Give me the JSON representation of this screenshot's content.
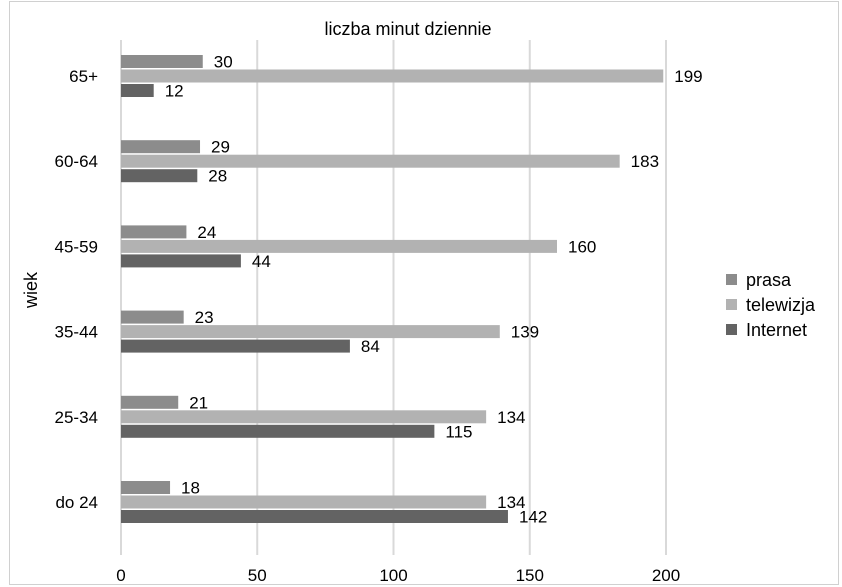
{
  "chart_data": {
    "type": "bar",
    "orientation": "horizontal",
    "title": "liczba minut dziennie",
    "xlabel": "",
    "ylabel": "wiek",
    "categories": [
      "do 24",
      "25-34",
      "35-44",
      "45-59",
      "60-64",
      "65+"
    ],
    "xlim": [
      0,
      200
    ],
    "xticks": [
      "0",
      "50",
      "100",
      "150",
      "200"
    ],
    "grid": "vertical",
    "legend_position": "right",
    "series": [
      {
        "name": "prasa",
        "color": "#8c8c8c",
        "values": [
          18,
          21,
          23,
          24,
          29,
          30
        ]
      },
      {
        "name": "telewizja",
        "color": "#b2b2b2",
        "values": [
          134,
          134,
          139,
          160,
          183,
          199
        ]
      },
      {
        "name": "Internet",
        "color": "#636363",
        "values": [
          142,
          115,
          84,
          44,
          28,
          12
        ]
      }
    ]
  }
}
